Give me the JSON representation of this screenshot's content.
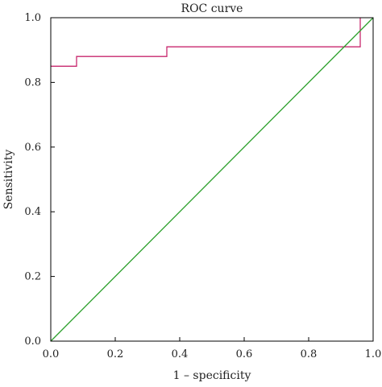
{
  "chart_data": {
    "type": "line",
    "title": "ROC curve",
    "xlabel": "1 – specificity",
    "ylabel": "Sensitivity",
    "xlim": [
      0,
      1
    ],
    "ylim": [
      0,
      1
    ],
    "xticks": [
      "0.0",
      "0.2",
      "0.4",
      "0.6",
      "0.8",
      "1.0"
    ],
    "yticks": [
      "0.0",
      "0.2",
      "0.4",
      "0.6",
      "0.8",
      "1.0"
    ],
    "grid": false,
    "series": [
      {
        "color": "#c8286e",
        "x": [
          0.0,
          0.08,
          0.08,
          0.36,
          0.36,
          0.96,
          0.96
        ],
        "y": [
          0.85,
          0.85,
          0.88,
          0.88,
          0.91,
          0.91,
          1.0
        ]
      },
      {
        "color": "#2ca02c",
        "x": [
          0.0,
          1.0
        ],
        "y": [
          0.0,
          1.0
        ]
      }
    ]
  }
}
